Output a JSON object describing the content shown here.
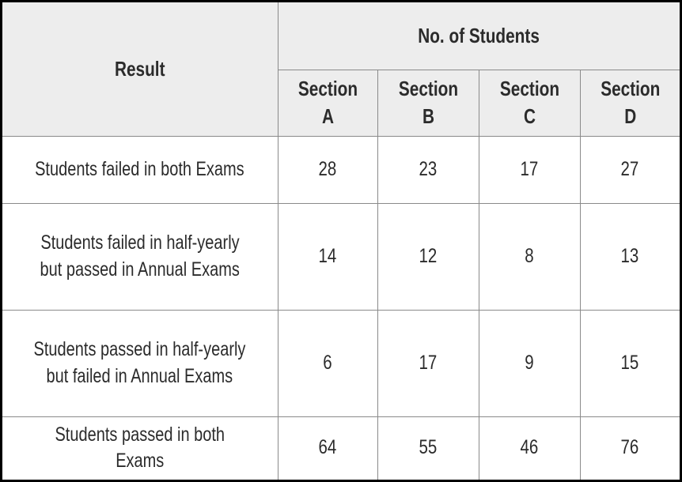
{
  "table": {
    "result_header": "Result",
    "group_header": "No. of Students",
    "sections": [
      "Section A",
      "Section B",
      "Section C",
      "Section D"
    ],
    "rows": [
      {
        "label_lines": [
          "Students failed in both Exams"
        ],
        "values": [
          "28",
          "23",
          "17",
          "27"
        ]
      },
      {
        "label_lines": [
          "Students failed in half-yearly",
          "but passed in Annual Exams"
        ],
        "values": [
          "14",
          "12",
          "8",
          "13"
        ]
      },
      {
        "label_lines": [
          "Students passed in half-yearly",
          "but failed in Annual Exams"
        ],
        "values": [
          "6",
          "17",
          "9",
          "15"
        ]
      },
      {
        "label_lines": [
          "Students passed in both Exams"
        ],
        "values": [
          "64",
          "55",
          "46",
          "76"
        ]
      }
    ]
  },
  "chart_data": {
    "type": "table",
    "columns": [
      "Result",
      "Section A",
      "Section B",
      "Section C",
      "Section D"
    ],
    "column_group": "No. of Students",
    "rows": [
      [
        "Students failed in both Exams",
        28,
        23,
        17,
        27
      ],
      [
        "Students failed in half-yearly but passed in Annual Exams",
        14,
        12,
        8,
        13
      ],
      [
        "Students passed in half-yearly but failed in Annual Exams",
        6,
        17,
        9,
        15
      ],
      [
        "Students passed in both Exams",
        64,
        55,
        46,
        76
      ]
    ]
  }
}
